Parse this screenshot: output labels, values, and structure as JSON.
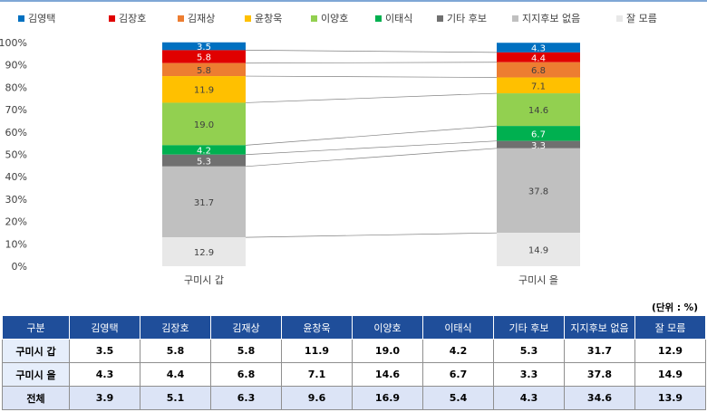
{
  "chart_data": {
    "type": "bar",
    "stacked": true,
    "percent_stacked": true,
    "categories": [
      "구미시 갑",
      "구미시 을"
    ],
    "ylim": [
      0,
      100
    ],
    "yticks": [
      "0%",
      "10%",
      "20%",
      "30%",
      "40%",
      "50%",
      "60%",
      "70%",
      "80%",
      "90%",
      "100%"
    ],
    "legend_position": "top",
    "series": [
      {
        "name": "김영택",
        "color": "#0070c0",
        "values": [
          3.5,
          4.3
        ]
      },
      {
        "name": "김장호",
        "color": "#e00000",
        "values": [
          5.8,
          4.4
        ]
      },
      {
        "name": "김재상",
        "color": "#ed7d31",
        "values": [
          5.8,
          6.8
        ]
      },
      {
        "name": "윤창욱",
        "color": "#ffc000",
        "values": [
          11.9,
          7.1
        ]
      },
      {
        "name": "이양호",
        "color": "#92d050",
        "values": [
          19.0,
          14.6
        ]
      },
      {
        "name": "이태식",
        "color": "#00b050",
        "values": [
          4.2,
          6.7
        ]
      },
      {
        "name": "기타 후보",
        "color": "#707070",
        "values": [
          5.3,
          3.3
        ]
      },
      {
        "name": "지지후보 없음",
        "color": "#c0c0c0",
        "values": [
          31.7,
          37.8
        ]
      },
      {
        "name": "잘 모름",
        "color": "#e8e8e8",
        "values": [
          12.9,
          14.9
        ]
      }
    ]
  },
  "table": {
    "unit": "(단위 : %)",
    "headers": [
      "구분",
      "김영택",
      "김장호",
      "김재상",
      "윤창욱",
      "이양호",
      "이태식",
      "기타 후보",
      "지지후보 없음",
      "잘 모름"
    ],
    "rows": [
      [
        "구미시 갑",
        "3.5",
        "5.8",
        "5.8",
        "11.9",
        "19.0",
        "4.2",
        "5.3",
        "31.7",
        "12.9"
      ],
      [
        "구미시 을",
        "4.3",
        "4.4",
        "6.8",
        "7.1",
        "14.6",
        "6.7",
        "3.3",
        "37.8",
        "14.9"
      ],
      [
        "전체",
        "3.9",
        "5.1",
        "6.3",
        "9.6",
        "16.9",
        "5.4",
        "4.3",
        "34.6",
        "13.9"
      ]
    ]
  }
}
